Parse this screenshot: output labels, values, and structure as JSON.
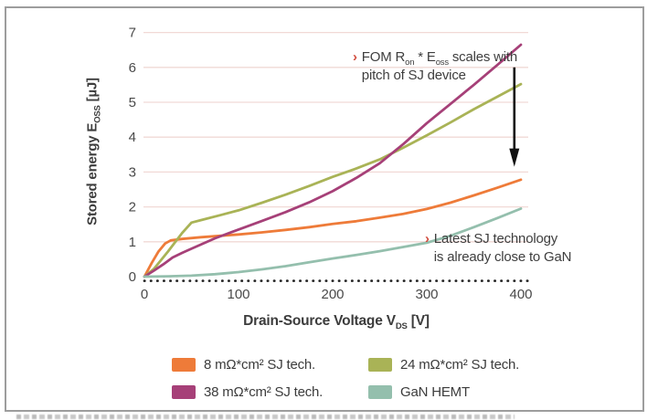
{
  "axis": {
    "y": {
      "pre": "Stored energy E",
      "sub": "OSS",
      "post": " [µJ]"
    },
    "x": {
      "pre": "Drain-Source Voltage V",
      "sub": "DS",
      "post": " [V]"
    }
  },
  "annotations": {
    "fom": {
      "bullet": "›",
      "a": "FOM R",
      "a_sub": "on",
      "b": " * E",
      "b_sub": "oss",
      "c": " scales with",
      "line2": "pitch of SJ device"
    },
    "gan": {
      "bullet": "›",
      "line1": "Latest SJ technology",
      "line2": "is already close to GaN"
    }
  },
  "legend": {
    "items": [
      {
        "series_key": "sj8",
        "label": "8 mΩ*cm² SJ tech."
      },
      {
        "series_key": "sj24",
        "label": "24 mΩ*cm² SJ tech."
      },
      {
        "series_key": "sj38",
        "label": "38 mΩ*cm² SJ tech."
      },
      {
        "series_key": "gan",
        "label": "GaN HEMT"
      }
    ]
  },
  "colors": {
    "grid": "#f1d9d6",
    "dotted_baseline": "#222222",
    "arrow": "#111111",
    "bullet": "#d14b3d",
    "tick_text": "#4a4a4a",
    "frame_border": "#9d9d9d"
  },
  "chart_data": {
    "type": "line",
    "title": "",
    "xlabel": "Drain-Source Voltage V_DS [V]",
    "ylabel": "Stored energy E_OSS [µJ]",
    "xlim": [
      0,
      400
    ],
    "ylim": [
      0,
      7
    ],
    "xticks": [
      0,
      100,
      200,
      300,
      400
    ],
    "yticks": [
      0,
      1,
      2,
      3,
      4,
      5,
      6,
      7
    ],
    "grid": "horizontal",
    "legend_position": "bottom",
    "baseline_dotted_y": -0.12,
    "arrow": {
      "x": 393,
      "y_from": 6.0,
      "y_to": 3.15
    },
    "series": [
      {
        "key": "sj8",
        "name": "8 mΩ*cm² SJ tech.",
        "color": "#ee7b39",
        "points": [
          [
            0,
            0
          ],
          [
            8,
            0.4
          ],
          [
            15,
            0.72
          ],
          [
            22,
            0.95
          ],
          [
            28,
            1.04
          ],
          [
            40,
            1.08
          ],
          [
            60,
            1.13
          ],
          [
            80,
            1.17
          ],
          [
            100,
            1.21
          ],
          [
            125,
            1.27
          ],
          [
            150,
            1.34
          ],
          [
            175,
            1.42
          ],
          [
            200,
            1.51
          ],
          [
            225,
            1.59
          ],
          [
            250,
            1.69
          ],
          [
            275,
            1.8
          ],
          [
            300,
            1.94
          ],
          [
            325,
            2.12
          ],
          [
            350,
            2.33
          ],
          [
            375,
            2.55
          ],
          [
            400,
            2.78
          ]
        ]
      },
      {
        "key": "sj24",
        "name": "24 mΩ*cm² SJ tech.",
        "color": "#a9b356",
        "points": [
          [
            0,
            0
          ],
          [
            10,
            0.22
          ],
          [
            25,
            0.72
          ],
          [
            40,
            1.25
          ],
          [
            50,
            1.55
          ],
          [
            60,
            1.62
          ],
          [
            80,
            1.76
          ],
          [
            100,
            1.9
          ],
          [
            125,
            2.12
          ],
          [
            150,
            2.35
          ],
          [
            175,
            2.6
          ],
          [
            200,
            2.86
          ],
          [
            225,
            3.1
          ],
          [
            250,
            3.36
          ],
          [
            275,
            3.7
          ],
          [
            300,
            4.05
          ],
          [
            325,
            4.42
          ],
          [
            350,
            4.8
          ],
          [
            375,
            5.16
          ],
          [
            400,
            5.52
          ]
        ]
      },
      {
        "key": "sj38",
        "name": "38 mΩ*cm² SJ tech.",
        "color": "#a64078",
        "points": [
          [
            0,
            0
          ],
          [
            10,
            0.17
          ],
          [
            20,
            0.35
          ],
          [
            30,
            0.55
          ],
          [
            40,
            0.68
          ],
          [
            50,
            0.8
          ],
          [
            75,
            1.1
          ],
          [
            100,
            1.35
          ],
          [
            125,
            1.6
          ],
          [
            150,
            1.85
          ],
          [
            175,
            2.13
          ],
          [
            200,
            2.45
          ],
          [
            225,
            2.83
          ],
          [
            250,
            3.25
          ],
          [
            275,
            3.8
          ],
          [
            300,
            4.4
          ],
          [
            325,
            4.95
          ],
          [
            350,
            5.5
          ],
          [
            375,
            6.07
          ],
          [
            400,
            6.65
          ]
        ]
      },
      {
        "key": "gan",
        "name": "GaN HEMT",
        "color": "#94bfad",
        "points": [
          [
            0,
            0
          ],
          [
            25,
            0.01
          ],
          [
            50,
            0.03
          ],
          [
            75,
            0.07
          ],
          [
            100,
            0.13
          ],
          [
            125,
            0.21
          ],
          [
            150,
            0.3
          ],
          [
            175,
            0.41
          ],
          [
            200,
            0.52
          ],
          [
            225,
            0.62
          ],
          [
            250,
            0.73
          ],
          [
            275,
            0.85
          ],
          [
            300,
            0.97
          ],
          [
            325,
            1.17
          ],
          [
            350,
            1.42
          ],
          [
            375,
            1.68
          ],
          [
            400,
            1.95
          ]
        ]
      }
    ]
  }
}
